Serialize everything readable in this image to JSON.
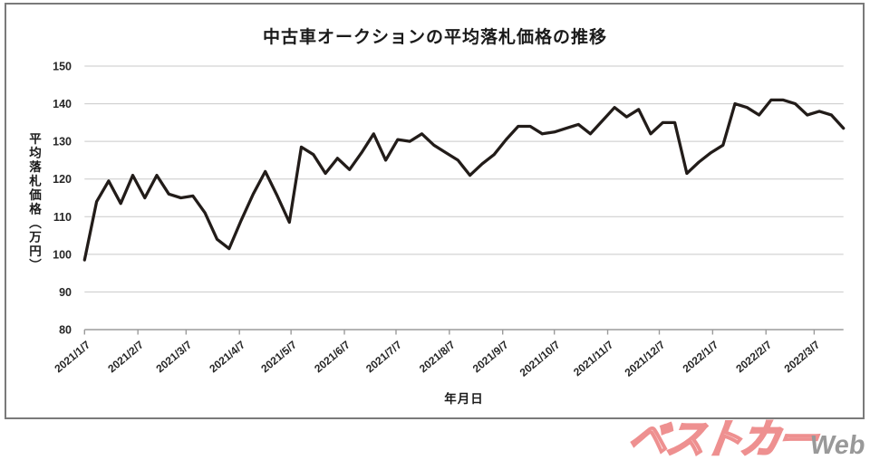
{
  "figure": {
    "title": "中古車オークションの平均落札価格の推移",
    "y_axis_title": "平均落札価格（万円）",
    "x_axis_title": "年月日"
  },
  "logo": {
    "main": "ベストカー",
    "sub": "Web"
  },
  "chart_data": {
    "type": "line",
    "title": "中古車オークションの平均落札価格の推移",
    "xlabel": "年月日",
    "ylabel": "平均落札価格（万円）",
    "ylim": [
      80,
      150
    ],
    "grid": true,
    "legend": "none",
    "y_ticks": [
      80,
      90,
      100,
      110,
      120,
      130,
      140,
      150
    ],
    "x_start_date": "2021/1/7",
    "x_interval_days": 7,
    "x_tick_labels": [
      "2021/1/7",
      "2021/2/7",
      "2021/3/7",
      "2021/4/7",
      "2021/5/7",
      "2021/6/7",
      "2021/7/7",
      "2021/8/7",
      "2021/9/7",
      "2021/10/7",
      "2021/11/7",
      "2021/12/7",
      "2022/1/7",
      "2022/2/7",
      "2022/3/7"
    ],
    "x_tick_day_offsets": [
      0,
      31,
      59,
      90,
      120,
      151,
      181,
      212,
      243,
      273,
      304,
      334,
      365,
      396,
      424
    ],
    "values": [
      98.5,
      114,
      119.5,
      113.5,
      121,
      115,
      121,
      116,
      115,
      115.5,
      111,
      104,
      101.5,
      109,
      116,
      122,
      115.5,
      108.5,
      128.5,
      126.5,
      121.5,
      125.5,
      122.5,
      127,
      132,
      125,
      130.5,
      130,
      132,
      129,
      127,
      125,
      121,
      124,
      126.5,
      130.5,
      134,
      134,
      132,
      132.5,
      133.5,
      134.5,
      132,
      135.5,
      139,
      136.5,
      138.5,
      132,
      135,
      135,
      121.5,
      124.5,
      127,
      129,
      140,
      139,
      137,
      141,
      141,
      140,
      137,
      138,
      137,
      133.5
    ],
    "line_color": "#221c19",
    "grid_color": "#c9c9c9",
    "axis_color": "#9b9b9b",
    "logo_red": "#ee9090",
    "logo_gray": "#999999"
  }
}
